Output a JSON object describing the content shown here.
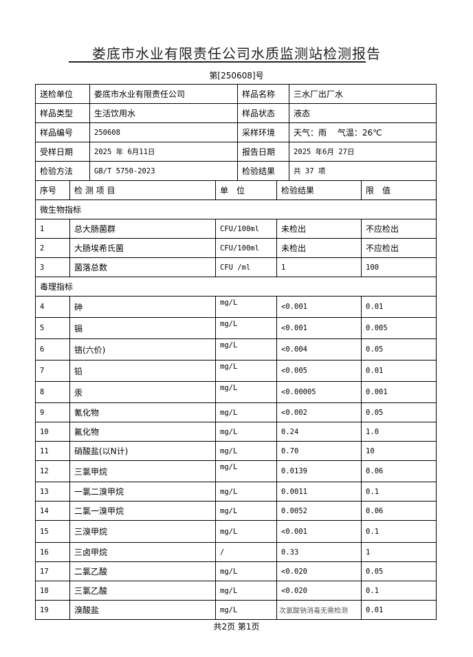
{
  "title": "娄底市水业有限责任公司水质监测站检测报告",
  "report_no": "第[250608]号",
  "info": [
    [
      "送检单位",
      "娄底市水业有限责任公司",
      "样品名称",
      "三水厂出厂水"
    ],
    [
      "样品类型",
      "生活饮用水",
      "样品状态",
      "液态"
    ],
    [
      "样品编号",
      "250608",
      "采样环境",
      "天气：雨　 气温：26℃"
    ],
    [
      "受样日期",
      "2025 年 6月11日",
      "报告日期",
      " 2025 年6月 27日"
    ],
    [
      "检验方法",
      "GB/T 5750-2023",
      "检验结果",
      "  共  37 项"
    ]
  ],
  "headers": [
    "序号",
    "检 测 项 目",
    "单　位",
    "检验结果",
    "限　值"
  ],
  "sections": [
    {
      "title": "微生物指标",
      "rows": [
        [
          "1",
          "总大肠菌群",
          "CFU/100ml",
          "未检出",
          "不应检出"
        ],
        [
          "2",
          "大肠埃希氏菌",
          "CFU/100ml",
          "未检出",
          "不应检出"
        ],
        [
          "3",
          "菌落总数",
          "CFU /ml",
          "1",
          "100"
        ]
      ]
    },
    {
      "title": "毒理指标",
      "rows": [
        [
          "4",
          "砷",
          "mg/L",
          "<0.001",
          "0.01"
        ],
        [
          "5",
          "镉",
          "mg/L",
          "<0.001",
          "0.005"
        ],
        [
          "6",
          "铬(六价)",
          "mg/L",
          "<0.004",
          "0.05"
        ],
        [
          "7",
          "铅",
          "mg/L",
          "<0.005",
          "0.01"
        ],
        [
          "8",
          "汞",
          "mg/L",
          "<0.00005",
          "0.001"
        ],
        [
          "9",
          "氰化物",
          "mg/L",
          "<0.002",
          "0.05"
        ],
        [
          "10",
          "氟化物",
          "mg/L",
          "0.24",
          "1.0"
        ],
        [
          "11",
          "硝酸盐(以N计)",
          "mg/L",
          "0.70",
          "10"
        ],
        [
          "12",
          "三氯甲烷",
          "mg/L",
          "0.0139",
          "0.06"
        ],
        [
          "13",
          "一氯二溴甲烷",
          "mg/L",
          "0.0011",
          "0.1"
        ],
        [
          "14",
          "二氯一溴甲烷",
          "mg/L",
          "0.0052",
          "0.06"
        ],
        [
          "15",
          "三溴甲烷",
          "mg/L",
          "<0.001",
          "0.1"
        ],
        [
          "16",
          "三卤甲烷",
          "/",
          "0.33",
          "1"
        ],
        [
          "17",
          "二氯乙酸",
          "mg/L",
          "<0.020",
          "0.05"
        ],
        [
          "18",
          "三氯乙酸",
          "mg/L",
          "<0.020",
          "0.1"
        ],
        [
          "19",
          "溴酸盐",
          "mg/L",
          "次氯酸钠消毒无需检测",
          "0.01"
        ]
      ]
    }
  ],
  "footer": "共2页 第1页"
}
